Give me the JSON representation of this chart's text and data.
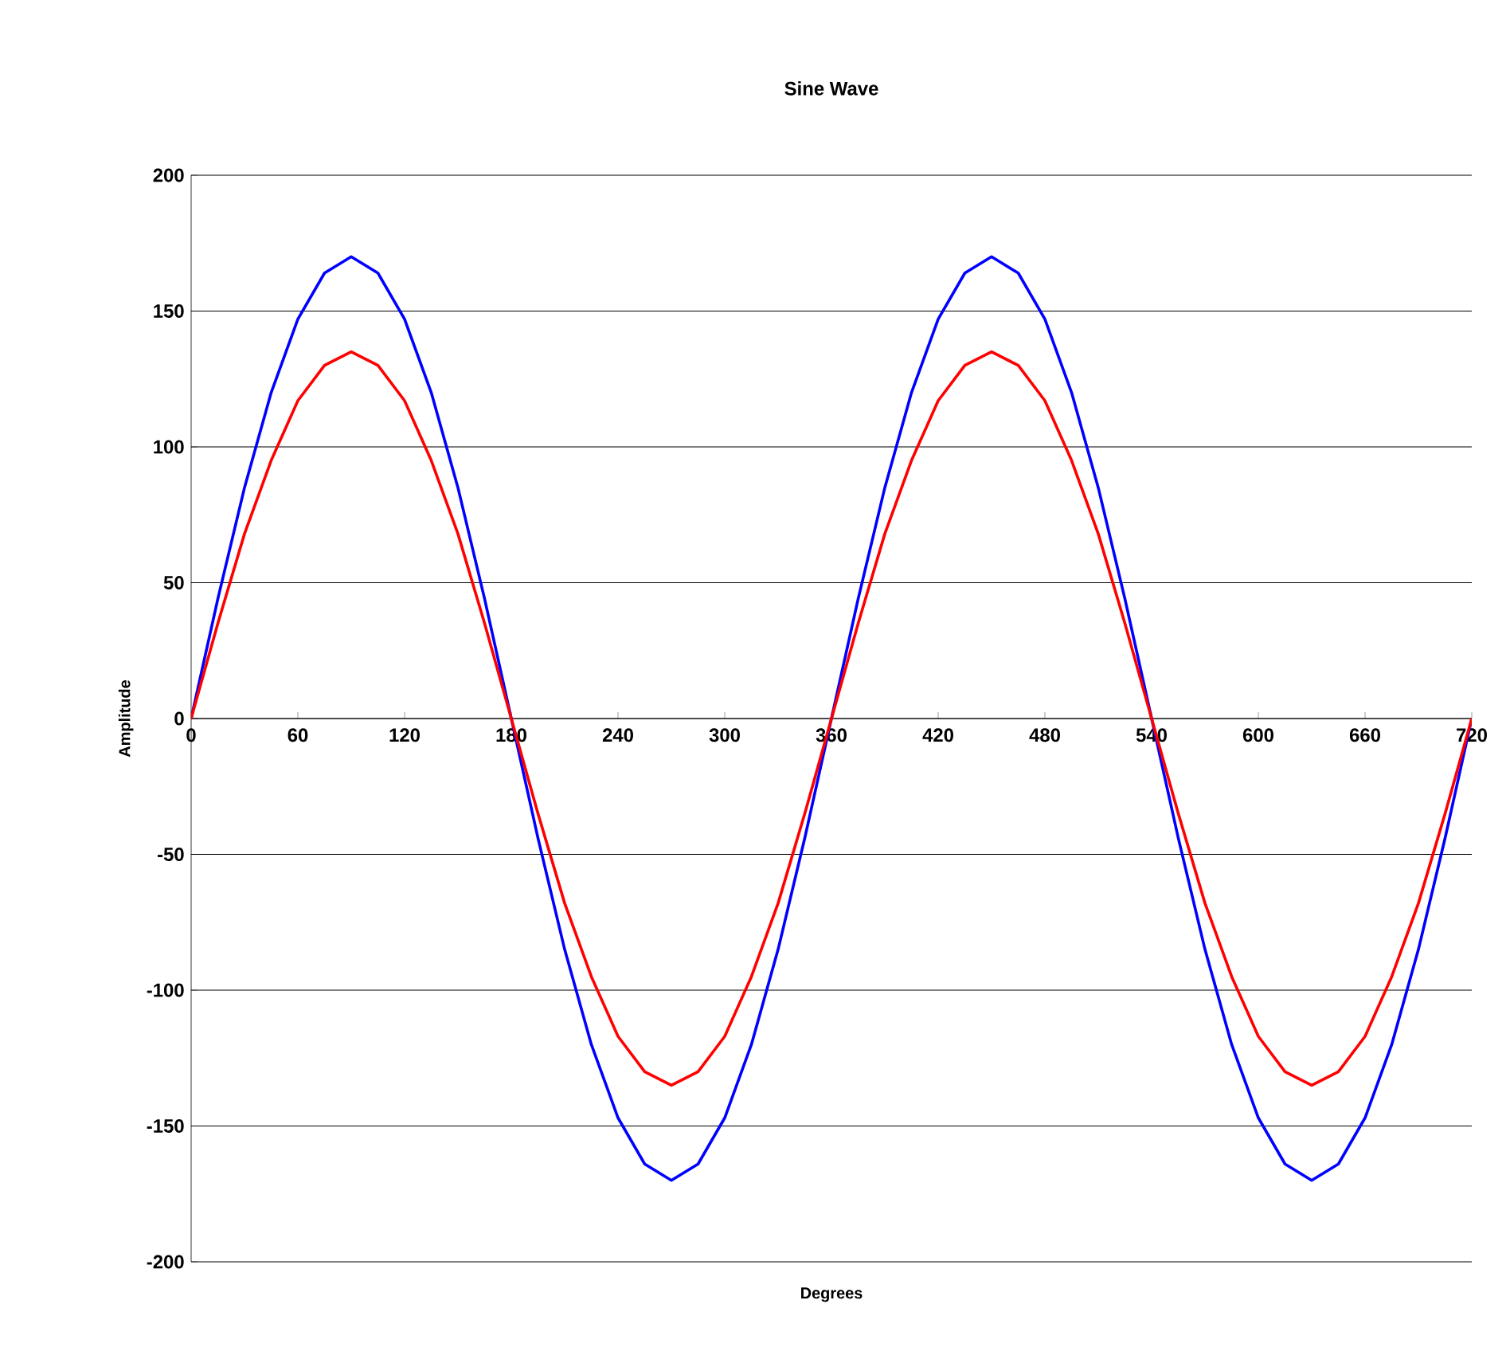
{
  "chart_data": {
    "type": "line",
    "title": "Sine Wave",
    "xlabel": "Degrees",
    "ylabel": "Amplitude",
    "x": [
      0,
      15,
      30,
      45,
      60,
      75,
      90,
      105,
      120,
      135,
      150,
      165,
      180,
      195,
      210,
      225,
      240,
      255,
      270,
      285,
      300,
      315,
      330,
      345,
      360,
      375,
      390,
      405,
      420,
      435,
      450,
      465,
      480,
      495,
      510,
      525,
      540,
      555,
      570,
      585,
      600,
      615,
      630,
      645,
      660,
      675,
      690,
      705,
      720
    ],
    "series": [
      {
        "color": "#0000ff",
        "values": [
          0,
          44,
          85,
          120,
          147,
          164,
          170,
          164,
          147,
          120,
          85,
          44,
          0,
          -44,
          -85,
          -120,
          -147,
          -164,
          -170,
          -164,
          -147,
          -120,
          -85,
          -44,
          0,
          44,
          85,
          120,
          147,
          164,
          170,
          164,
          147,
          120,
          85,
          44,
          0,
          -44,
          -85,
          -120,
          -147,
          -164,
          -170,
          -164,
          -147,
          -120,
          -85,
          -44,
          0
        ]
      },
      {
        "color": "#ff0000",
        "values": [
          0,
          35,
          68,
          95,
          117,
          130,
          135,
          130,
          117,
          95,
          68,
          35,
          0,
          -35,
          -68,
          -95,
          -117,
          -130,
          -135,
          -130,
          -117,
          -95,
          -68,
          -35,
          0,
          35,
          68,
          95,
          117,
          130,
          135,
          130,
          117,
          95,
          68,
          35,
          0,
          -35,
          -68,
          -95,
          -117,
          -130,
          -135,
          -130,
          -117,
          -95,
          -68,
          -35,
          0
        ]
      }
    ],
    "xlim": [
      0,
      720
    ],
    "xticks": [
      0,
      60,
      120,
      180,
      240,
      300,
      360,
      420,
      480,
      540,
      600,
      660,
      720
    ],
    "ylim": [
      -200,
      200
    ],
    "yticks": [
      -200,
      -150,
      -100,
      -50,
      0,
      50,
      100,
      150,
      200
    ],
    "grid": "y",
    "marker": "none",
    "line_style": "solid"
  }
}
